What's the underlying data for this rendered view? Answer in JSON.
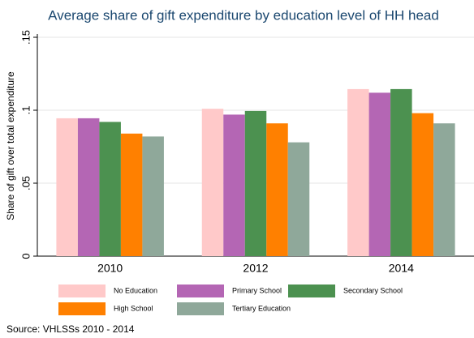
{
  "chart_data": {
    "type": "bar",
    "title": "Average share of gift expenditure by education level of HH head",
    "y_label": "Share of gift over total expenditure",
    "source": "Source: VHLSSs 2010 - 2014",
    "categories": [
      "2010",
      "2012",
      "2014"
    ],
    "series": [
      {
        "name": "No Education",
        "color": "#ffc9c9",
        "values": [
          0.0945,
          0.101,
          0.1145
        ]
      },
      {
        "name": "Primary School",
        "color": "#b466b4",
        "values": [
          0.0945,
          0.097,
          0.112
        ]
      },
      {
        "name": "Secondary School",
        "color": "#4c9150",
        "values": [
          0.092,
          0.0995,
          0.1145
        ]
      },
      {
        "name": "High School",
        "color": "#ff8000",
        "values": [
          0.084,
          0.091,
          0.098
        ]
      },
      {
        "name": "Tertiary Education",
        "color": "#8fa89a",
        "values": [
          0.082,
          0.078,
          0.091
        ]
      }
    ],
    "ylim": [
      0,
      0.15
    ],
    "yticks": [
      0,
      {
        "value": 0.05,
        "label": ".05"
      },
      {
        "value": 0.1,
        "label": ".1"
      },
      {
        "value": 0.15,
        "label": ".15"
      }
    ],
    "grid": true
  }
}
